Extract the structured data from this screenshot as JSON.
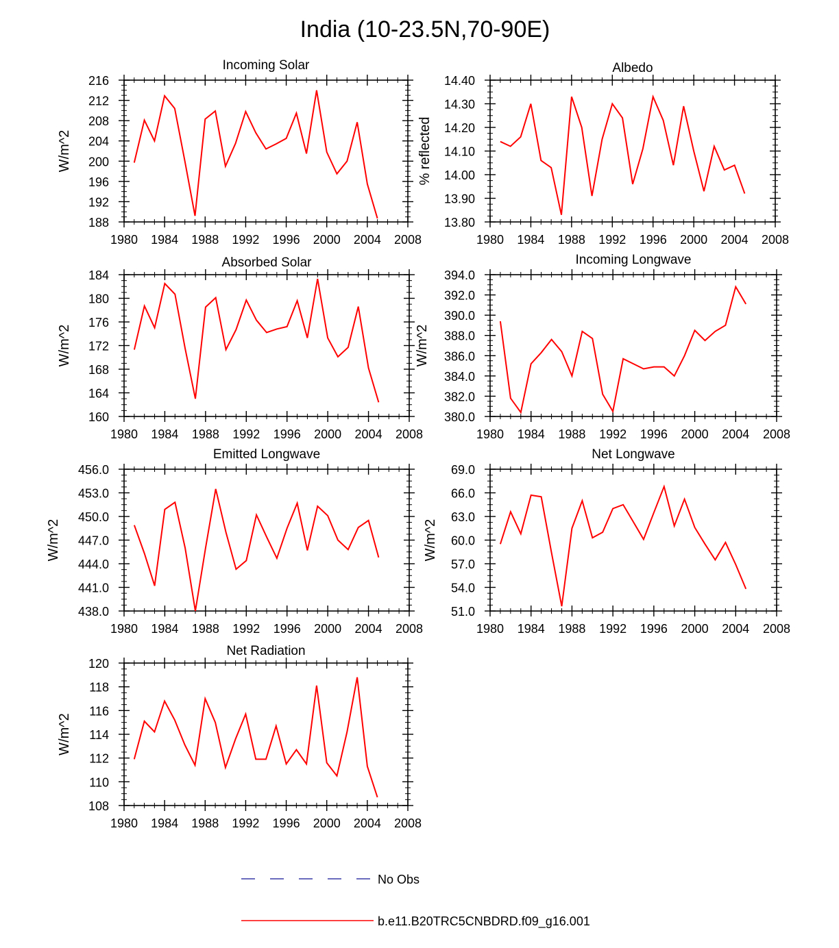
{
  "figure_title": "India (10-23.5N,70-90E)",
  "legend": [
    {
      "label": "No Obs",
      "style": "dashed",
      "color": "#3a3aa8"
    },
    {
      "label": "b.e11.B20TRC5CNBDRD.f09_g16.001",
      "style": "solid",
      "color": "#ff0000"
    }
  ],
  "series_color": "#ff0000",
  "chart_data": [
    {
      "type": "line",
      "title": "Incoming Solar",
      "ylabel": "W/m^2",
      "xlim": [
        1980,
        2008
      ],
      "xticks": [
        "1980",
        "1984",
        "1988",
        "1992",
        "1996",
        "2000",
        "2004",
        "2008"
      ],
      "ylim": [
        188,
        216
      ],
      "yticks": [
        "188",
        "192",
        "196",
        "200",
        "204",
        "208",
        "212",
        "216"
      ],
      "x": [
        1981,
        1982,
        1983,
        1984,
        1985,
        1986,
        1987,
        1988,
        1989,
        1990,
        1991,
        1992,
        1993,
        1994,
        1995,
        1996,
        1997,
        1998,
        1999,
        2000,
        2001,
        2002,
        2003,
        2004,
        2005
      ],
      "series": [
        {
          "name": "b.e11.B20TRC5CNBDRD.f09_g16.001",
          "values": [
            199.7,
            208.1,
            204.0,
            212.9,
            210.4,
            200.0,
            189.2,
            208.3,
            209.9,
            199.0,
            203.5,
            209.8,
            205.6,
            202.4,
            203.4,
            204.5,
            209.5,
            201.5,
            214.0,
            201.8,
            197.5,
            200.0,
            207.7,
            195.5,
            188.7
          ]
        }
      ]
    },
    {
      "type": "line",
      "title": "Albedo",
      "ylabel": "% reflected",
      "xlim": [
        1980,
        2008
      ],
      "xticks": [
        "1980",
        "1984",
        "1988",
        "1992",
        "1996",
        "2000",
        "2004",
        "2008"
      ],
      "ylim": [
        13.8,
        14.4
      ],
      "yticks": [
        "13.80",
        "13.90",
        "14.00",
        "14.10",
        "14.20",
        "14.30",
        "14.40"
      ],
      "x": [
        1981,
        1982,
        1983,
        1984,
        1985,
        1986,
        1987,
        1988,
        1989,
        1990,
        1991,
        1992,
        1993,
        1994,
        1995,
        1996,
        1997,
        1998,
        1999,
        2000,
        2001,
        2002,
        2003,
        2004,
        2005
      ],
      "series": [
        {
          "name": "b.e11.B20TRC5CNBDRD.f09_g16.001",
          "values": [
            14.14,
            14.12,
            14.16,
            14.3,
            14.06,
            14.03,
            13.83,
            14.33,
            14.2,
            13.91,
            14.15,
            14.3,
            14.24,
            13.96,
            14.11,
            14.33,
            14.23,
            14.04,
            14.29,
            14.1,
            13.93,
            14.12,
            14.02,
            14.04,
            13.92
          ]
        }
      ]
    },
    {
      "type": "line",
      "title": "Absorbed Solar",
      "ylabel": "W/m^2",
      "xlim": [
        1980,
        2008
      ],
      "xticks": [
        "1980",
        "1984",
        "1988",
        "1992",
        "1996",
        "2000",
        "2004",
        "2008"
      ],
      "ylim": [
        160,
        184
      ],
      "yticks": [
        "160",
        "164",
        "168",
        "172",
        "176",
        "180",
        "184"
      ],
      "x": [
        1981,
        1982,
        1983,
        1984,
        1985,
        1986,
        1987,
        1988,
        1989,
        1990,
        1991,
        1992,
        1993,
        1994,
        1995,
        1996,
        1997,
        1998,
        1999,
        2000,
        2001,
        2002,
        2003,
        2004,
        2005
      ],
      "series": [
        {
          "name": "b.e11.B20TRC5CNBDRD.f09_g16.001",
          "values": [
            171.3,
            178.7,
            175.0,
            182.5,
            180.7,
            171.5,
            163.0,
            178.5,
            180.1,
            171.3,
            174.7,
            179.7,
            176.3,
            174.2,
            174.8,
            175.2,
            179.6,
            173.3,
            183.3,
            173.3,
            170.1,
            171.7,
            178.6,
            168.2,
            162.4
          ]
        }
      ]
    },
    {
      "type": "line",
      "title": "Incoming Longwave",
      "ylabel": "W/m^2",
      "xlim": [
        1980,
        2008
      ],
      "xticks": [
        "1980",
        "1984",
        "1988",
        "1992",
        "1996",
        "2000",
        "2004",
        "2008"
      ],
      "ylim": [
        380,
        394
      ],
      "yticks": [
        "380.0",
        "382.0",
        "384.0",
        "386.0",
        "388.0",
        "390.0",
        "392.0",
        "394.0"
      ],
      "x": [
        1981,
        1982,
        1983,
        1984,
        1985,
        1986,
        1987,
        1988,
        1989,
        1990,
        1991,
        1992,
        1993,
        1994,
        1995,
        1996,
        1997,
        1998,
        1999,
        2000,
        2001,
        2002,
        2003,
        2004,
        2005
      ],
      "series": [
        {
          "name": "b.e11.B20TRC5CNBDRD.f09_g16.001",
          "values": [
            389.4,
            381.8,
            380.4,
            385.2,
            386.3,
            387.6,
            386.4,
            384.0,
            388.4,
            387.7,
            382.2,
            380.5,
            385.7,
            385.2,
            384.7,
            384.9,
            384.9,
            384.0,
            386.0,
            388.5,
            387.5,
            388.4,
            389.0,
            392.8,
            391.1
          ]
        }
      ]
    },
    {
      "type": "line",
      "title": "Emitted Longwave",
      "ylabel": "W/m^2",
      "xlim": [
        1980,
        2008
      ],
      "xticks": [
        "1980",
        "1984",
        "1988",
        "1992",
        "1996",
        "2000",
        "2004",
        "2008"
      ],
      "ylim": [
        438,
        456
      ],
      "yticks": [
        "438.0",
        "441.0",
        "444.0",
        "447.0",
        "450.0",
        "453.0",
        "456.0"
      ],
      "x": [
        1981,
        1982,
        1983,
        1984,
        1985,
        1986,
        1987,
        1988,
        1989,
        1990,
        1991,
        1992,
        1993,
        1994,
        1995,
        1996,
        1997,
        1998,
        1999,
        2000,
        2001,
        2002,
        2003,
        2004,
        2005
      ],
      "series": [
        {
          "name": "b.e11.B20TRC5CNBDRD.f09_g16.001",
          "values": [
            448.9,
            445.3,
            441.2,
            450.9,
            451.8,
            446.0,
            438.0,
            446.0,
            453.5,
            448.0,
            443.3,
            444.4,
            450.2,
            447.4,
            444.7,
            448.5,
            451.7,
            445.7,
            451.3,
            450.1,
            447.0,
            445.8,
            448.6,
            449.5,
            444.8
          ]
        }
      ]
    },
    {
      "type": "line",
      "title": "Net Longwave",
      "ylabel": "W/m^2",
      "xlim": [
        1980,
        2008
      ],
      "xticks": [
        "1980",
        "1984",
        "1988",
        "1992",
        "1996",
        "2000",
        "2004",
        "2008"
      ],
      "ylim": [
        51,
        69
      ],
      "yticks": [
        "51.0",
        "54.0",
        "57.0",
        "60.0",
        "63.0",
        "66.0",
        "69.0"
      ],
      "x": [
        1981,
        1982,
        1983,
        1984,
        1985,
        1986,
        1987,
        1988,
        1989,
        1990,
        1991,
        1992,
        1993,
        1994,
        1995,
        1996,
        1997,
        1998,
        1999,
        2000,
        2001,
        2002,
        2003,
        2004,
        2005
      ],
      "series": [
        {
          "name": "b.e11.B20TRC5CNBDRD.f09_g16.001",
          "values": [
            59.5,
            63.6,
            60.8,
            65.7,
            65.5,
            58.4,
            51.6,
            61.5,
            65.0,
            60.3,
            61.0,
            64.0,
            64.5,
            62.3,
            60.1,
            63.5,
            66.8,
            61.8,
            65.2,
            61.6,
            59.5,
            57.5,
            59.7,
            56.9,
            53.8
          ]
        }
      ]
    },
    {
      "type": "line",
      "title": "Net Radiation",
      "ylabel": "W/m^2",
      "xlim": [
        1980,
        2008
      ],
      "xticks": [
        "1980",
        "1984",
        "1988",
        "1992",
        "1996",
        "2000",
        "2004",
        "2008"
      ],
      "ylim": [
        108,
        120
      ],
      "yticks": [
        "108",
        "110",
        "112",
        "114",
        "116",
        "118",
        "120"
      ],
      "x": [
        1981,
        1982,
        1983,
        1984,
        1985,
        1986,
        1987,
        1988,
        1989,
        1990,
        1991,
        1992,
        1993,
        1994,
        1995,
        1996,
        1997,
        1998,
        1999,
        2000,
        2001,
        2002,
        2003,
        2004,
        2005
      ],
      "series": [
        {
          "name": "b.e11.B20TRC5CNBDRD.f09_g16.001",
          "values": [
            111.9,
            115.1,
            114.2,
            116.8,
            115.2,
            113.1,
            111.4,
            117.0,
            115.0,
            111.2,
            113.6,
            115.7,
            111.9,
            111.9,
            114.7,
            111.5,
            112.7,
            111.5,
            118.1,
            111.6,
            110.5,
            114.2,
            118.8,
            111.3,
            108.7
          ]
        }
      ]
    }
  ]
}
